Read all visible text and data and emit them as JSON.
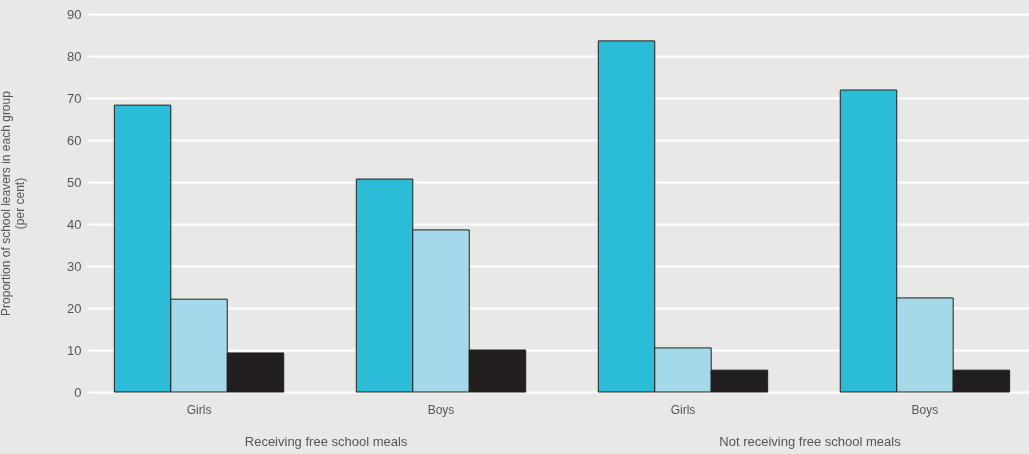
{
  "chart_data": {
    "type": "bar",
    "ylabel": "Proportion of school leavers in each group\n(per cent)",
    "categories": [
      "Girls",
      "Boys",
      "Girls",
      "Boys"
    ],
    "series": [
      {
        "color": "#2bbcd8",
        "values": [
          68.3,
          50.7,
          83.6,
          71.9
        ]
      },
      {
        "color": "#a3d9e8",
        "values": [
          22.1,
          38.6,
          10.5,
          22.4
        ]
      },
      {
        "color": "#231f20",
        "values": [
          9.3,
          10.0,
          5.2,
          5.2
        ]
      }
    ],
    "ylim": [
      0,
      90
    ],
    "yticks": [
      0,
      10,
      20,
      30,
      40,
      50,
      60,
      70,
      80,
      90
    ],
    "grid": "y",
    "annotations": [
      "Receiving free school meals",
      "Not receiving free school meals"
    ]
  }
}
